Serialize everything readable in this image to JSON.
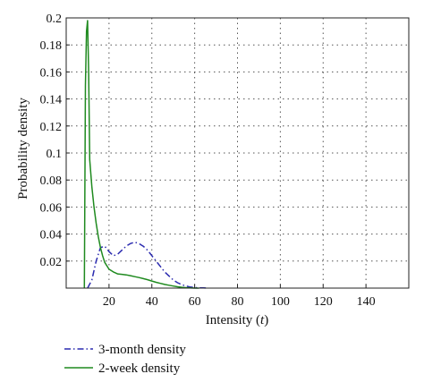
{
  "chart_data": {
    "type": "line",
    "title": "",
    "xlabel_prefix": "Intensity (",
    "xlabel_var": "t",
    "xlabel_suffix": ")",
    "ylabel": "Probability density",
    "xlim": [
      0,
      160
    ],
    "ylim": [
      0,
      0.2
    ],
    "x_ticks": [
      20,
      40,
      60,
      80,
      100,
      120,
      140
    ],
    "y_ticks": [
      0.02,
      0.04,
      0.06,
      0.08,
      0.1,
      0.12,
      0.14,
      0.16,
      0.18,
      0.2
    ],
    "y_tick_labels": [
      "0.02",
      "0.04",
      "0.06",
      "0.08",
      "0.1",
      "0.12",
      "0.14",
      "0.16",
      "0.18",
      "0.2"
    ],
    "grid": true,
    "legend_position": "bottom-left, below plot",
    "series": [
      {
        "name": "3-month density",
        "color": "#2b2bb0",
        "style": "dash-dot",
        "x": [
          10,
          12,
          14,
          16,
          18,
          20,
          22,
          24,
          26,
          28,
          30,
          32,
          34,
          36,
          38,
          40,
          42,
          44,
          46,
          48,
          50,
          52,
          54,
          56,
          58,
          60,
          62,
          64,
          66
        ],
        "y": [
          0.0,
          0.006,
          0.02,
          0.03,
          0.031,
          0.027,
          0.024,
          0.025,
          0.028,
          0.031,
          0.033,
          0.034,
          0.033,
          0.031,
          0.028,
          0.024,
          0.02,
          0.016,
          0.012,
          0.009,
          0.006,
          0.004,
          0.0025,
          0.0015,
          0.0008,
          0.0004,
          0.0002,
          0.0001,
          0.0
        ]
      },
      {
        "name": "2-week density",
        "color": "#1f8a1f",
        "style": "solid",
        "x": [
          8.5,
          9,
          9.5,
          10,
          10.5,
          11,
          12,
          13,
          14,
          15,
          16,
          17,
          18,
          20,
          22,
          24,
          26,
          28,
          30,
          32,
          34,
          36,
          38,
          40,
          42,
          44,
          46,
          48,
          50,
          52,
          54,
          56,
          58,
          60,
          62
        ],
        "y": [
          0.0,
          0.15,
          0.19,
          0.198,
          0.16,
          0.095,
          0.075,
          0.06,
          0.048,
          0.038,
          0.03,
          0.024,
          0.019,
          0.014,
          0.012,
          0.0105,
          0.0102,
          0.0098,
          0.0092,
          0.0085,
          0.0078,
          0.007,
          0.0062,
          0.0052,
          0.0043,
          0.0035,
          0.0027,
          0.0021,
          0.0015,
          0.001,
          0.0006,
          0.0003,
          0.0001,
          0.0,
          0.0
        ]
      }
    ]
  }
}
